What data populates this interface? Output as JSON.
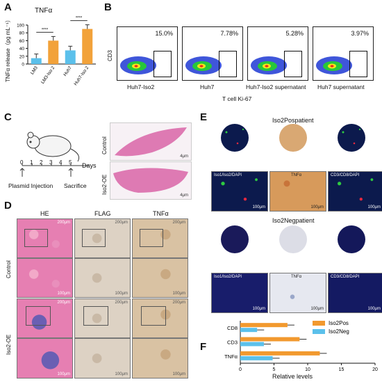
{
  "panels": {
    "A": "A",
    "B": "B",
    "C": "C",
    "D": "D",
    "E": "E",
    "F": "F"
  },
  "panelA": {
    "title": "TNFα",
    "ylabel": "TNFα release（pg mL⁻¹）",
    "sig": [
      "****",
      "****"
    ],
    "colors": {
      "lm3": "#5bc0eb",
      "lm3iso2": "#f2a23a",
      "huh7": "#5bc0eb",
      "huh7iso2": "#f2a23a"
    }
  },
  "chart_data": [
    {
      "type": "bar",
      "title": "TNFα",
      "ylabel": "TNFα release（pg mL⁻¹）",
      "categories": [
        "LM3",
        "LM3-Iso 2",
        "Huh7",
        "Huh7-Iso 2"
      ],
      "values": [
        15,
        60,
        35,
        90
      ],
      "ylim": [
        0,
        100
      ],
      "yticks": [
        "0",
        "20",
        "40",
        "60",
        "80",
        "100"
      ]
    },
    {
      "type": "bar",
      "orientation": "horizontal",
      "categories": [
        "CD8",
        "CD3",
        "TNFα"
      ],
      "series": [
        {
          "name": "Iso2Pos",
          "values": [
            7,
            8.8,
            11.8
          ]
        },
        {
          "name": "Iso2Neg",
          "values": [
            2.5,
            3.5,
            4.8
          ]
        }
      ],
      "xlabel": "Relative levels",
      "xlim": [
        0,
        20
      ],
      "xticks": [
        "0",
        "5",
        "10",
        "15",
        "20"
      ],
      "colors": {
        "Iso2Pos": "#f2992e",
        "Iso2Neg": "#5bc0eb"
      }
    }
  ],
  "panelB": {
    "ylabel": "CD3",
    "xlabel": "T cell  Ki-67",
    "plots": [
      {
        "pct": "15.0%",
        "label": "Huh7-Iso2"
      },
      {
        "pct": "7.78%",
        "label": "Huh7"
      },
      {
        "pct": "5.28%",
        "label": "Huh7-Iso2 supernatant"
      },
      {
        "pct": "3.97%",
        "label": "Huh7 supernatant"
      }
    ]
  },
  "panelC": {
    "timeline": [
      "0",
      "1",
      "2",
      "3",
      "4",
      "5"
    ],
    "days": "Days",
    "injection": "Plasmid Injection",
    "sacrifice": "Sacrifice",
    "rows": [
      "Control",
      "Iso2-OE"
    ],
    "scale": "4μm"
  },
  "panelD": {
    "cols": [
      "HE",
      "FLAG",
      "TNFα"
    ],
    "rows": [
      "Control",
      "Iso2-OE"
    ],
    "scale_top": "200μm",
    "scale_bottom": "100μm"
  },
  "panelE": {
    "pos_title": "Iso2Pospatient",
    "neg_title": "Iso2Negpatient",
    "labels": [
      "Iso1/Iso2/DAPI",
      "TNFα",
      "CD3/CD8/DAPI"
    ],
    "scale": "100μm"
  },
  "panelF": {
    "legend": [
      "Iso2Pos",
      "Iso2Neg"
    ],
    "xlabel": "Relative levels"
  }
}
